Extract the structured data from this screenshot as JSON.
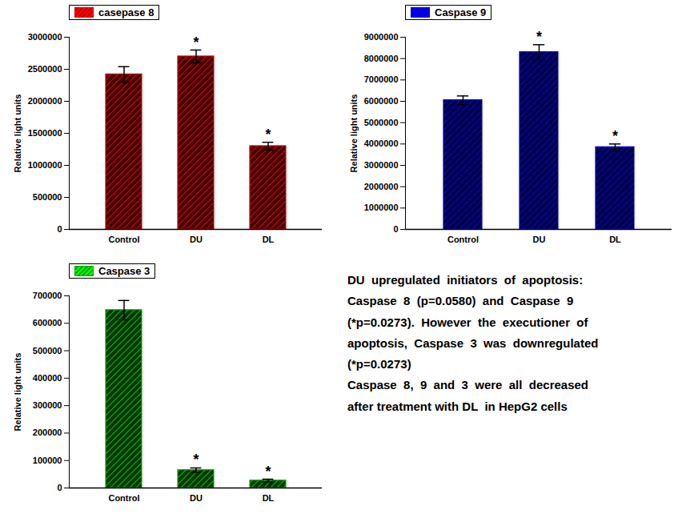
{
  "chart_data": [
    {
      "type": "bar",
      "categories": [
        "Control",
        "DU",
        "DL"
      ],
      "series": [
        {
          "name": "casepase 8",
          "color": "#cc0000",
          "values": [
            2420000,
            2700000,
            1300000
          ],
          "errors": [
            120000,
            100000,
            60000
          ]
        }
      ],
      "annotations": [
        null,
        "*",
        "*"
      ],
      "ylabel": "Relative light units",
      "ylim": [
        0,
        3000000
      ],
      "yticks": [
        0,
        500000,
        1000000,
        1500000,
        2000000,
        2500000,
        3000000
      ],
      "legend": "upper left",
      "grid": false
    },
    {
      "type": "bar",
      "categories": [
        "Control",
        "DU",
        "DL"
      ],
      "series": [
        {
          "name": "Caspase 9",
          "color": "#0000cc",
          "values": [
            6050000,
            8300000,
            3850000
          ],
          "errors": [
            200000,
            350000,
            150000
          ]
        }
      ],
      "annotations": [
        null,
        "*",
        "*"
      ],
      "ylabel": "Relative light units",
      "ylim": [
        0,
        9000000
      ],
      "yticks": [
        0,
        1000000,
        2000000,
        3000000,
        4000000,
        5000000,
        6000000,
        7000000,
        8000000,
        9000000
      ],
      "legend": "upper left",
      "grid": false
    },
    {
      "type": "bar",
      "categories": [
        "Control",
        "DU",
        "DL"
      ],
      "series": [
        {
          "name": "Caspase 3",
          "color": "#00aa00",
          "values": [
            648000,
            65000,
            27000
          ],
          "errors": [
            35000,
            8000,
            5000
          ]
        }
      ],
      "annotations": [
        null,
        "*",
        "*"
      ],
      "ylabel": "Relative light units",
      "ylim": [
        0,
        700000
      ],
      "yticks": [
        0,
        100000,
        200000,
        300000,
        400000,
        500000,
        600000,
        700000
      ],
      "legend": "upper left",
      "grid": false
    }
  ],
  "annotations": [
    "DU  upregulated  initiators  of  apoptosis:",
    "Caspase  8  (p=0.0580)  and  Caspase  9",
    "(*p=0.0273).  However  the  executioner  of",
    "apoptosis,  Caspase  3  was  downregulated",
    "(*p=0.0273)",
    "Caspase  8,  9  and  3  were  all  decreased",
    "after treatment with DL  in HepG2 cells"
  ]
}
